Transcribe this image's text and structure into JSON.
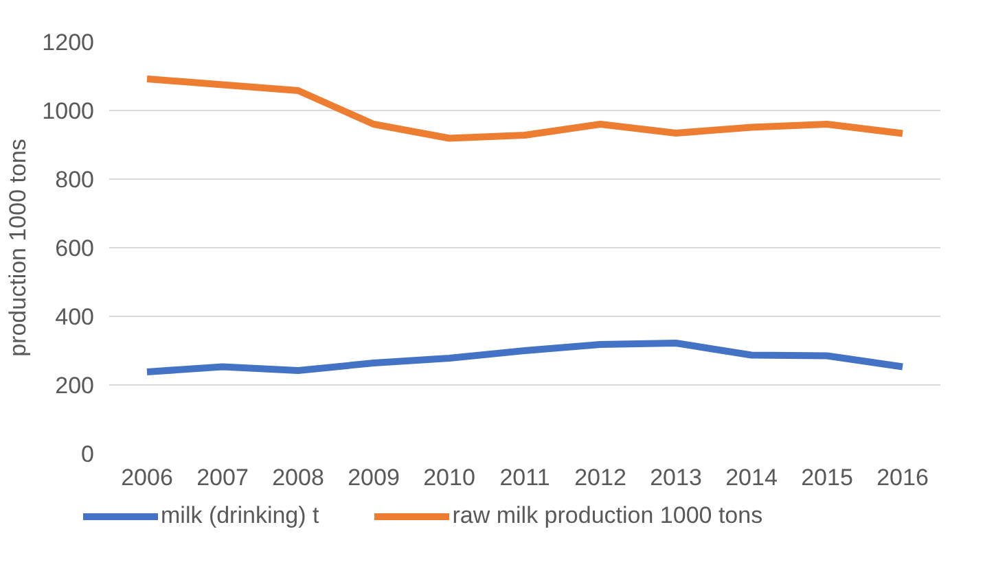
{
  "chart_data": {
    "type": "line",
    "ylabel": "production 1000 tons",
    "categories": [
      "2006",
      "2007",
      "2008",
      "2009",
      "2010",
      "2011",
      "2012",
      "2013",
      "2014",
      "2015",
      "2016"
    ],
    "series": [
      {
        "name": "milk (drinking) t",
        "color": "#4472c4",
        "values": [
          238,
          253,
          242,
          264,
          278,
          300,
          318,
          322,
          287,
          285,
          253
        ]
      },
      {
        "name": "raw milk production 1000 tons",
        "color": "#ed7d31",
        "values": [
          1092,
          1075,
          1058,
          960,
          919,
          928,
          960,
          934,
          951,
          960,
          933
        ]
      }
    ],
    "ylim": [
      0,
      1200
    ],
    "yticks": [
      0,
      200,
      400,
      600,
      800,
      1000,
      1200
    ],
    "grid": "y",
    "legend": "bottom",
    "marker": "none",
    "line_style": "solid"
  }
}
